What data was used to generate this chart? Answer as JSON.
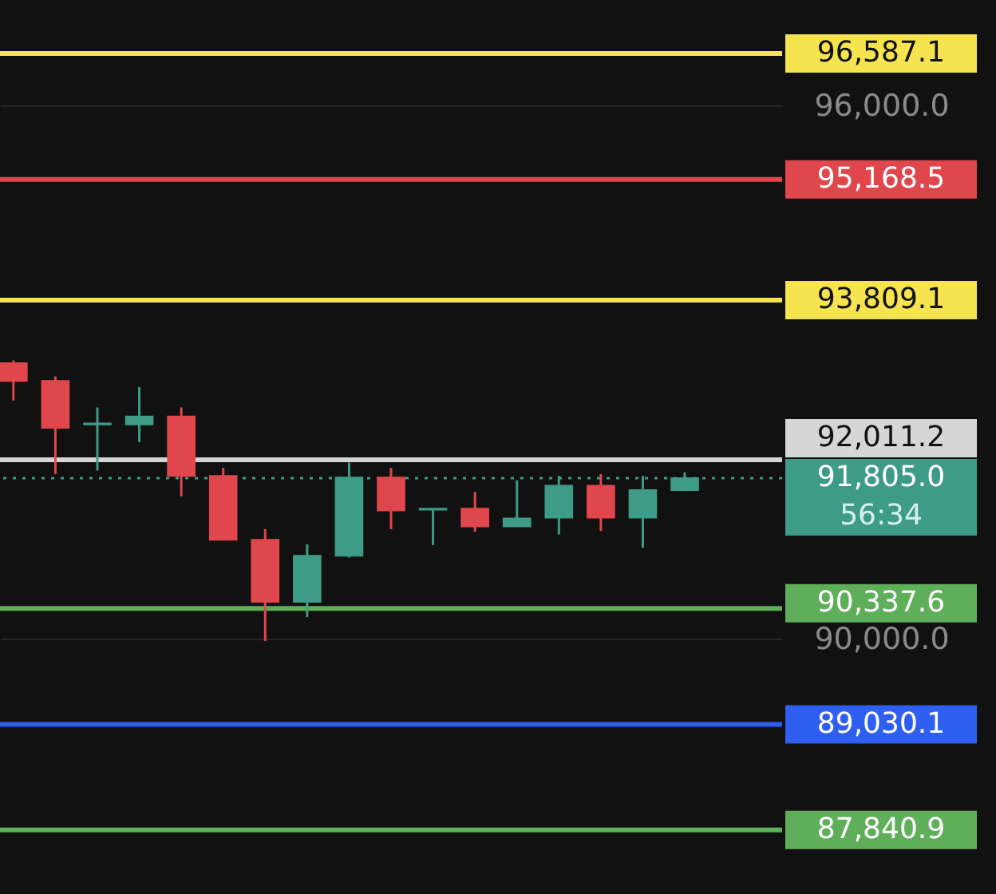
{
  "chart_data": {
    "type": "candlestick",
    "categories": [
      null,
      null,
      null,
      null,
      null,
      null,
      null,
      null,
      null,
      null,
      null,
      null,
      null,
      null,
      null,
      null,
      null
    ],
    "ohlc": [
      [
        93100,
        93130,
        92680,
        92900
      ],
      [
        92900,
        92950,
        91850,
        92370
      ],
      [
        92410,
        92600,
        91890,
        92420
      ],
      [
        92410,
        92830,
        92210,
        92500
      ],
      [
        92500,
        92600,
        91600,
        91830
      ],
      [
        91830,
        91920,
        91110,
        91110
      ],
      [
        91110,
        91230,
        89970,
        90410
      ],
      [
        90410,
        91060,
        90240,
        90930
      ],
      [
        90930,
        91980,
        90910,
        91810
      ],
      [
        91810,
        91920,
        91230,
        91440
      ],
      [
        91450,
        91460,
        91050,
        91460
      ],
      [
        91460,
        91650,
        91200,
        91260
      ],
      [
        91260,
        91780,
        91260,
        91350
      ],
      [
        91360,
        91830,
        91170,
        91720
      ],
      [
        91720,
        91850,
        91210,
        91360
      ],
      [
        91360,
        91830,
        91020,
        91670
      ],
      [
        91670,
        91870,
        91670,
        91805
      ]
    ],
    "colors": [
      "#e0474c",
      "#e0474c",
      "#3e9b87",
      "#3e9b87",
      "#e0474c",
      "#e0474c",
      "#e0474c",
      "#3e9b87",
      "#3e9b87",
      "#e0474c",
      "#3e9b87",
      "#e0474c",
      "#3e9b87",
      "#3e9b87",
      "#e0474c",
      "#3e9b87",
      "#3e9b87"
    ],
    "ylim": [
      87120,
      97190
    ],
    "yticks": [
      {
        "value": 90000,
        "label": "90,000.0"
      },
      {
        "value": 96000,
        "label": "96,000.0"
      }
    ],
    "grid": "y",
    "tick_labels": "y",
    "ref_lines": [
      {
        "axis": "y",
        "value": 96587.1,
        "label": "96,587.1",
        "color": "#f5e44f"
      },
      {
        "axis": "y",
        "value": 95168.5,
        "label": "95,168.5",
        "color": "#e0474c"
      },
      {
        "axis": "y",
        "value": 93809.1,
        "label": "93,809.1",
        "color": "#f5e44f"
      },
      {
        "axis": "y",
        "value": 92011.2,
        "label": "92,011.2",
        "color": "#d6d6d6"
      },
      {
        "axis": "y",
        "value": 91805.0,
        "label": "91,805.0",
        "color": "#3e9b87",
        "line_style": "dotted"
      },
      {
        "axis": "y",
        "value": 90337.6,
        "label": "90,337.6",
        "color": "#5fae5a"
      },
      {
        "axis": "y",
        "value": 89030.1,
        "label": "89,030.1",
        "color": "#2f5ff0"
      },
      {
        "axis": "y",
        "value": 87840.9,
        "label": "87,840.9",
        "color": "#5fae5a"
      }
    ],
    "annotations": [
      "56:34"
    ]
  }
}
